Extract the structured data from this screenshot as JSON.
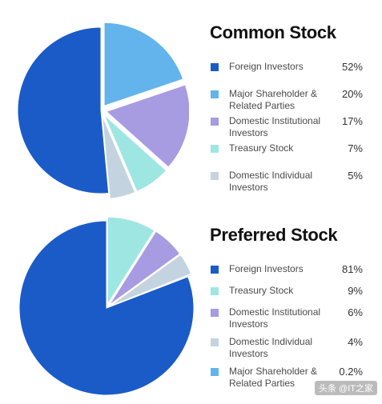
{
  "colors": {
    "foreign": "#1a5bc8",
    "major": "#63b4ec",
    "institutional": "#a79be2",
    "treasury": "#9ee6e2",
    "individual": "#c3d3e0"
  },
  "watermark": "头条 @IT之家",
  "chart_data": [
    {
      "type": "pie",
      "title": "Common Stock",
      "labels": [
        "Foreign Investors",
        "Major Shareholder & Related Parties",
        "Domestic Institutional Investors",
        "Treasury Stock",
        "Domestic Individual Investors"
      ],
      "values": [
        52,
        20,
        17,
        7,
        5
      ],
      "value_labels": [
        "52%",
        "20%",
        "17%",
        "7%",
        "5%"
      ],
      "color_keys": [
        "foreign",
        "major",
        "institutional",
        "treasury",
        "individual"
      ],
      "slice_order": [
        "major",
        "institutional",
        "treasury",
        "individual",
        "foreign"
      ],
      "legend_placement": "right"
    },
    {
      "type": "pie",
      "title": "Preferred Stock",
      "labels": [
        "Foreign Investors",
        "Treasury Stock",
        "Domestic Institutional Investors",
        "Domestic Individual Investors",
        "Major Shareholder & Related Parties"
      ],
      "values": [
        81,
        9,
        6,
        4,
        0.2
      ],
      "value_labels": [
        "81%",
        "9%",
        "6%",
        "4%",
        "0.2%"
      ],
      "color_keys": [
        "foreign",
        "treasury",
        "institutional",
        "individual",
        "major"
      ],
      "slice_order": [
        "treasury",
        "institutional",
        "individual",
        "major",
        "foreign"
      ],
      "legend_placement": "right"
    }
  ]
}
